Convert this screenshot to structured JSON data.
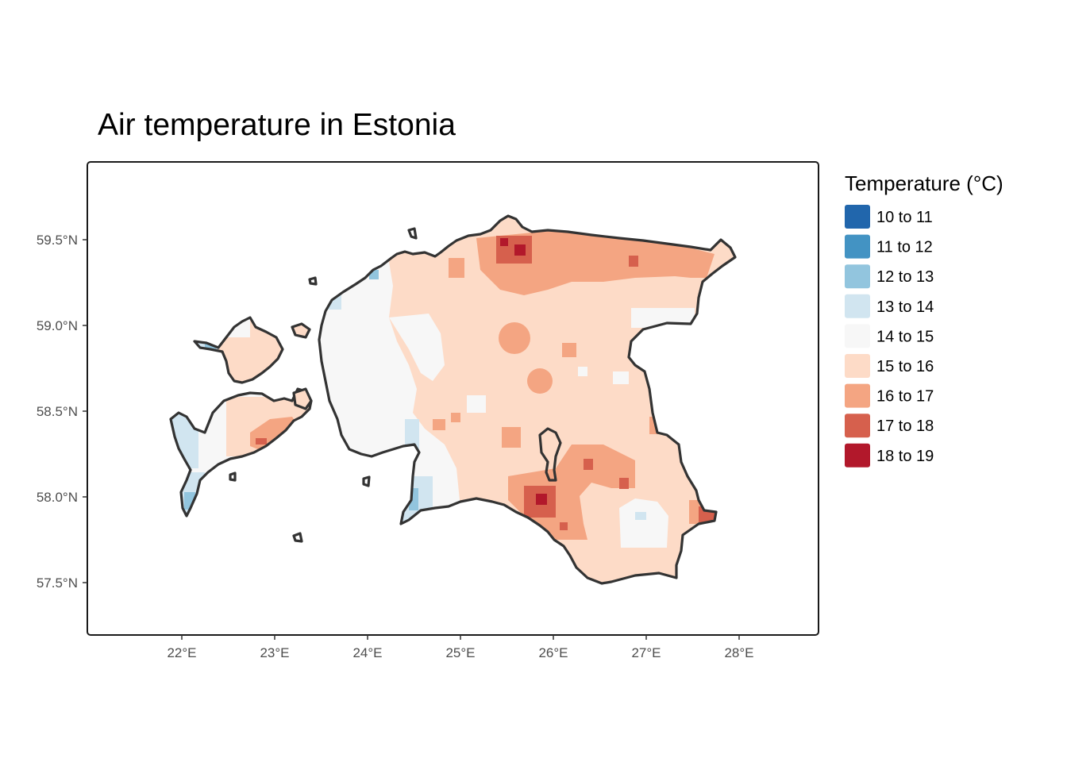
{
  "title": "Air temperature in Estonia",
  "x_axis": {
    "ticks": [
      "22°E",
      "23°E",
      "24°E",
      "25°E",
      "26°E",
      "27°E",
      "28°E"
    ]
  },
  "y_axis": {
    "ticks": [
      "59.5°N",
      "59.0°N",
      "58.5°N",
      "58.0°N",
      "57.5°N"
    ]
  },
  "legend": {
    "title": "Temperature (°C)",
    "placement": "right",
    "items": [
      {
        "label": "10 to 11",
        "color": "#2166ac"
      },
      {
        "label": "11 to 12",
        "color": "#4393c3"
      },
      {
        "label": "12 to 13",
        "color": "#92c5de"
      },
      {
        "label": "13 to 14",
        "color": "#d1e5f0"
      },
      {
        "label": "14 to 15",
        "color": "#f7f7f7"
      },
      {
        "label": "15 to 16",
        "color": "#fddbc7"
      },
      {
        "label": "16 to 17",
        "color": "#f4a582"
      },
      {
        "label": "17 to 18",
        "color": "#d6604d"
      },
      {
        "label": "18 to 19",
        "color": "#b2182b"
      }
    ]
  }
}
